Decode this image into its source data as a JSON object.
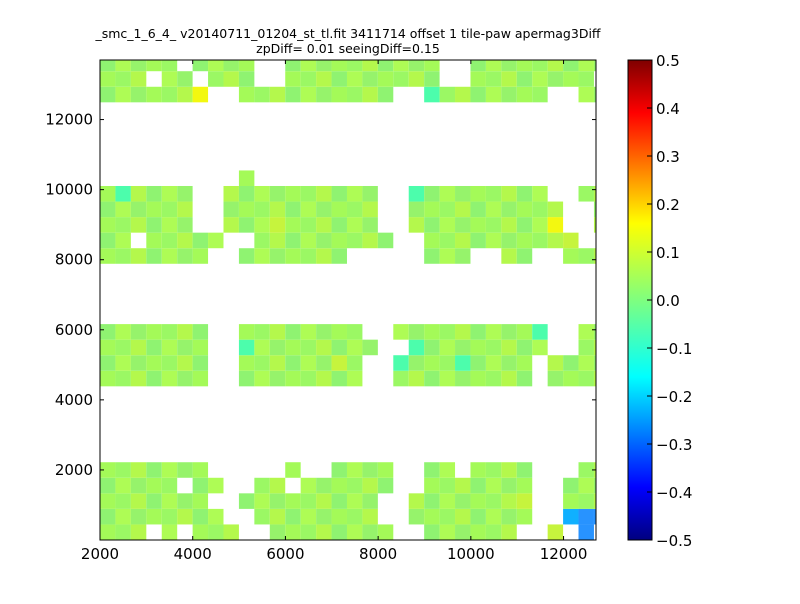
{
  "chart_data": {
    "type": "heatmap",
    "title": "_smc_1_6_4_ v20140711_01204_st_tl.fit 3411714 offset 1 tile-paw apermag3Diff",
    "subtitle": "zpDiff= 0.01 seeingDiff=0.15",
    "xlim": [
      2000,
      12700
    ],
    "ylim": [
      0,
      13700
    ],
    "xticks": [
      "2000",
      "4000",
      "6000",
      "8000",
      "10000",
      "12000"
    ],
    "yticks": [
      "2000",
      "4000",
      "6000",
      "8000",
      "10000",
      "12000"
    ],
    "xtick_values": [
      2000,
      4000,
      6000,
      8000,
      10000,
      12000
    ],
    "ytick_values": [
      2000,
      4000,
      6000,
      8000,
      10000,
      12000
    ],
    "colorbar": {
      "colormap": "jet",
      "range": [
        -0.5,
        0.5
      ],
      "ticks": [
        "0.5",
        "0.4",
        "0.3",
        "0.2",
        "0.1",
        "0.0",
        "−0.1",
        "−0.2",
        "−0.3",
        "−0.4",
        "−0.5"
      ],
      "tick_values": [
        0.5,
        0.4,
        0.3,
        0.2,
        0.1,
        0.0,
        -0.1,
        -0.2,
        -0.3,
        -0.4,
        -0.5
      ]
    },
    "grid": false,
    "cell_size": [
      333,
      444
    ],
    "rows_y_min": [
      0,
      444,
      888,
      1332,
      1776,
      3942,
      4386,
      4830,
      5274,
      5718,
      7884,
      8328,
      8772,
      9216,
      9660,
      10104,
      12048,
      12492,
      12936,
      13380
    ],
    "blocks": [
      {
        "x_min": 2000,
        "cols": 3
      },
      {
        "x_min": 3000,
        "cols": 3
      },
      {
        "x_min": 4660,
        "cols": 7
      },
      {
        "x_min": 7700,
        "cols": 6
      },
      {
        "x_min": 9700,
        "cols": 0
      },
      {
        "x_min": 10370,
        "cols": 0
      },
      {
        "x_min": 10700,
        "cols": 6
      }
    ],
    "rows": [
      "ggg g ggg  gggggggg  gggggg  h B BB BB",
      "gggggggg  gggggggg  gggggggg  ABBBBBBc",
      "ggggggg  ggggggggg  gggggggh  gggggg",
      "ggggg gg  gg gggggg  ggggggg  gggggg",
      "ggggggg     g  gggg  gg gggg   gggg",
      "",
      "ggggggg  gggggggg  ggggggggg gggggggg",
      "ggggggg  gggggghg  cgggcgggg gggggg",
      "ggggggg  cgggggggg  cgggggggg  gggggg",
      "ggggggg  gggggggg  gggggggggc  gggggg",
      "ggggggg  ggggggg     ggg  gg  ggggggg",
      "gg ggggg  ggggggggg  gggggggggh  gggggggg",
      "gggggg  ggghgggggg  gggggggggy  gggg",
      "gggggg  gggggggggg  gggggggggg  gggg",
      "gcgggg  gggggggggg  cgggggggg  gggg",
      "         g",
      "",
      "ggggggy  gggggggggg  cggggggg  gggg",
      "ggg gg ggg  gggggggggg  gggggggg  gggg",
      "ggggg gggg  gggggggggg  ggggggggg  gggg"
    ]
  }
}
